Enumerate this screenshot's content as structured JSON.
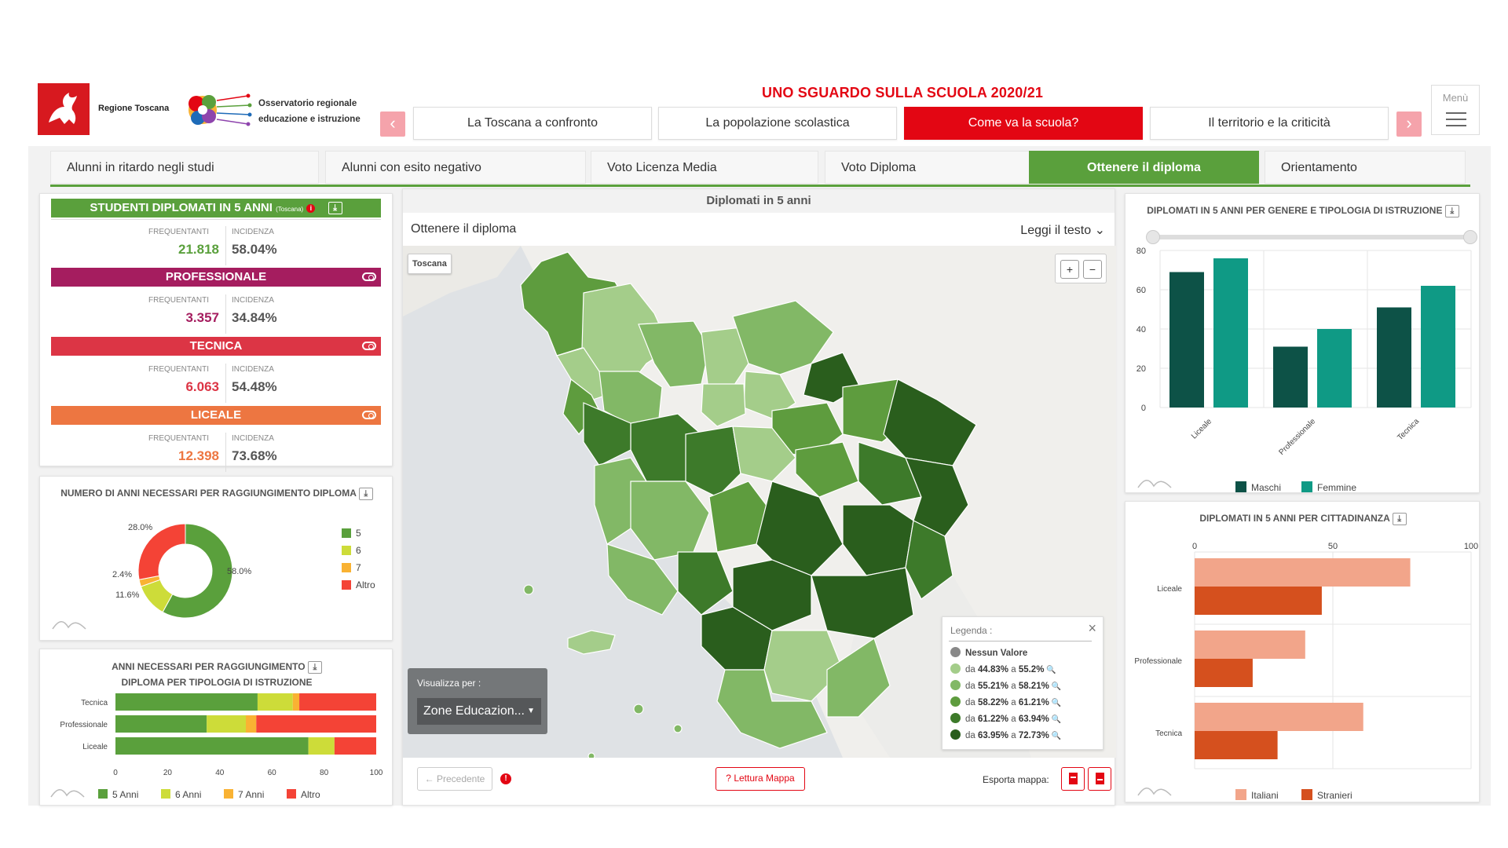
{
  "header": {
    "region_name": "Regione Toscana",
    "observatory": "Osservatorio regionale educazione e istruzione",
    "title": "UNO SGUARDO SULLA SCUOLA 2020/21",
    "menu_label": "Menù",
    "tabs": [
      "La Toscana a confronto",
      "La popolazione scolastica",
      "Come va la scuola?",
      "Il territorio e la criticità"
    ],
    "active_tab": 2,
    "prev_arrow": "‹",
    "next_arrow": "›"
  },
  "subtabs": [
    "Alunni in ritardo negli studi",
    "Alunni con esito negativo",
    "Voto Licenza Media",
    "Voto Diploma",
    "Ottenere il diploma",
    "Orientamento"
  ],
  "summary": {
    "title": "STUDENTI DIPLOMATI IN 5 ANNI",
    "title_suffix": "(Toscana)",
    "col_freq": "FREQUENTANTI",
    "col_inc": "INCIDENZA",
    "total": {
      "freq": "21.818",
      "inc": "58.04%"
    },
    "categories": [
      {
        "name": "PROFESSIONALE",
        "color": "#a51d5f",
        "value_color": "#a51d5f",
        "freq": "3.357",
        "inc": "34.84%"
      },
      {
        "name": "TECNICA",
        "color": "#dc3545",
        "value_color": "#dc3545",
        "freq": "6.063",
        "inc": "54.48%"
      },
      {
        "name": "LICEALE",
        "color": "#ed7641",
        "value_color": "#ed7641",
        "freq": "12.398",
        "inc": "73.68%"
      }
    ]
  },
  "donut_panel": {
    "title": "NUMERO DI ANNI NECESSARI PER RAGGIUNGIMENTO DIPLOMA",
    "chart_data": {
      "type": "pie",
      "labels": [
        "5",
        "6",
        "7",
        "Altro"
      ],
      "values": [
        58.0,
        11.6,
        2.4,
        28.0
      ],
      "value_labels": [
        "58.0%",
        "11.6%",
        "2.4%",
        "28.0%"
      ],
      "colors": [
        "#5aa03c",
        "#cddc39",
        "#f9b233",
        "#f44336"
      ]
    }
  },
  "stacked_panel": {
    "title_line1": "ANNI NECESSARI PER RAGGIUNGIMENTO",
    "title_line2": "DIPLOMA PER TIPOLOGIA DI ISTRUZIONE",
    "chart_data": {
      "type": "bar",
      "orientation": "horizontal",
      "stacked": true,
      "categories": [
        "Tecnica",
        "Professionale",
        "Liceale"
      ],
      "series": [
        {
          "name": "5 Anni",
          "color": "#5aa03c",
          "values": [
            54.5,
            35,
            74
          ]
        },
        {
          "name": "6 Anni",
          "color": "#cddc39",
          "values": [
            13.5,
            15,
            10
          ]
        },
        {
          "name": "7 Anni",
          "color": "#f9b233",
          "values": [
            2.5,
            4,
            0
          ]
        },
        {
          "name": "Altro",
          "color": "#f44336",
          "values": [
            29.5,
            46,
            16
          ]
        }
      ],
      "xlim": [
        0,
        100
      ],
      "xticks": [
        "0",
        "20",
        "40",
        "60",
        "80",
        "100"
      ]
    }
  },
  "map_panel": {
    "title": "Diplomati in 5 anni",
    "subtitle": "Ottenere il diploma",
    "read_text": "Leggi il testo",
    "region_label": "Toscana",
    "zoom_in": "+",
    "zoom_out": "−",
    "legend_title": "Legenda :",
    "legend": [
      {
        "label": "Nessun Valore",
        "color": "#888888"
      },
      {
        "label_pre": "da ",
        "from": "44.83%",
        "mid": " a ",
        "to": "55.2%",
        "color": "#a4cd8a"
      },
      {
        "label_pre": "da ",
        "from": "55.21%",
        "mid": " a ",
        "to": "58.21%",
        "color": "#82b866"
      },
      {
        "label_pre": "da ",
        "from": "58.22%",
        "mid": " a ",
        "to": "61.21%",
        "color": "#5e9c3e"
      },
      {
        "label_pre": "da ",
        "from": "61.22%",
        "mid": " a ",
        "to": "63.94%",
        "color": "#3d7a2a"
      },
      {
        "label_pre": "da ",
        "from": "63.95%",
        "mid": " a ",
        "to": "72.73%",
        "color": "#2a5e1d"
      }
    ],
    "visualize_label": "Visualizza per :",
    "visualize_value": "Zone Educazion...",
    "prev_label": "Precedente",
    "read_map": "Lettura Mappa",
    "export_label": "Esporta mappa:"
  },
  "gender_panel": {
    "title": "DIPLOMATI IN 5 ANNI PER GENERE E TIPOLOGIA DI ISTRUZIONE",
    "chart_data": {
      "type": "bar",
      "categories": [
        "Liceale",
        "Professionale",
        "Tecnica"
      ],
      "series": [
        {
          "name": "Maschi",
          "color": "#0d5247",
          "values": [
            69,
            31,
            51
          ]
        },
        {
          "name": "Femmine",
          "color": "#0f9a85",
          "values": [
            76,
            40,
            62
          ]
        }
      ],
      "ylim": [
        0,
        80
      ],
      "yticks": [
        "0",
        "20",
        "40",
        "60",
        "80"
      ]
    }
  },
  "citizenship_panel": {
    "title": "DIPLOMATI IN 5 ANNI PER CITTADINANZA",
    "chart_data": {
      "type": "bar",
      "orientation": "horizontal",
      "categories": [
        "Liceale",
        "Professionale",
        "Tecnica"
      ],
      "series": [
        {
          "name": "Italiani",
          "color": "#f2a58a",
          "values": [
            78,
            40,
            61
          ]
        },
        {
          "name": "Stranieri",
          "color": "#d5501e",
          "values": [
            46,
            21,
            30
          ]
        }
      ],
      "xlim": [
        0,
        100
      ],
      "xticks": [
        "0",
        "50",
        "100"
      ]
    }
  }
}
